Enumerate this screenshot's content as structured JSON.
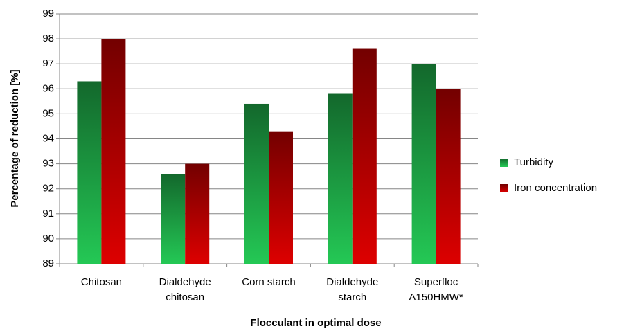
{
  "chart_data": {
    "type": "bar",
    "x_label": "Flocculant in optimal dose",
    "y_label": "Percentage of reduction [%]",
    "categories": [
      "Chitosan",
      "Dialdehyde\nchitosan",
      "Corn starch",
      "Dialdehyde\nstarch",
      "Superfloc\nA150HMW*"
    ],
    "series": [
      {
        "name": "Turbidity",
        "color": "#1fae4a",
        "values": [
          96.3,
          92.6,
          95.4,
          95.8,
          97.0
        ]
      },
      {
        "name": "Iron concentration",
        "color": "#c00000",
        "values": [
          98.0,
          93.0,
          94.3,
          97.6,
          96.0
        ]
      }
    ],
    "ylim": [
      89,
      99
    ],
    "yticks": [
      89,
      90,
      91,
      92,
      93,
      94,
      95,
      96,
      97,
      98,
      99
    ],
    "grid": true,
    "legend": "right"
  }
}
